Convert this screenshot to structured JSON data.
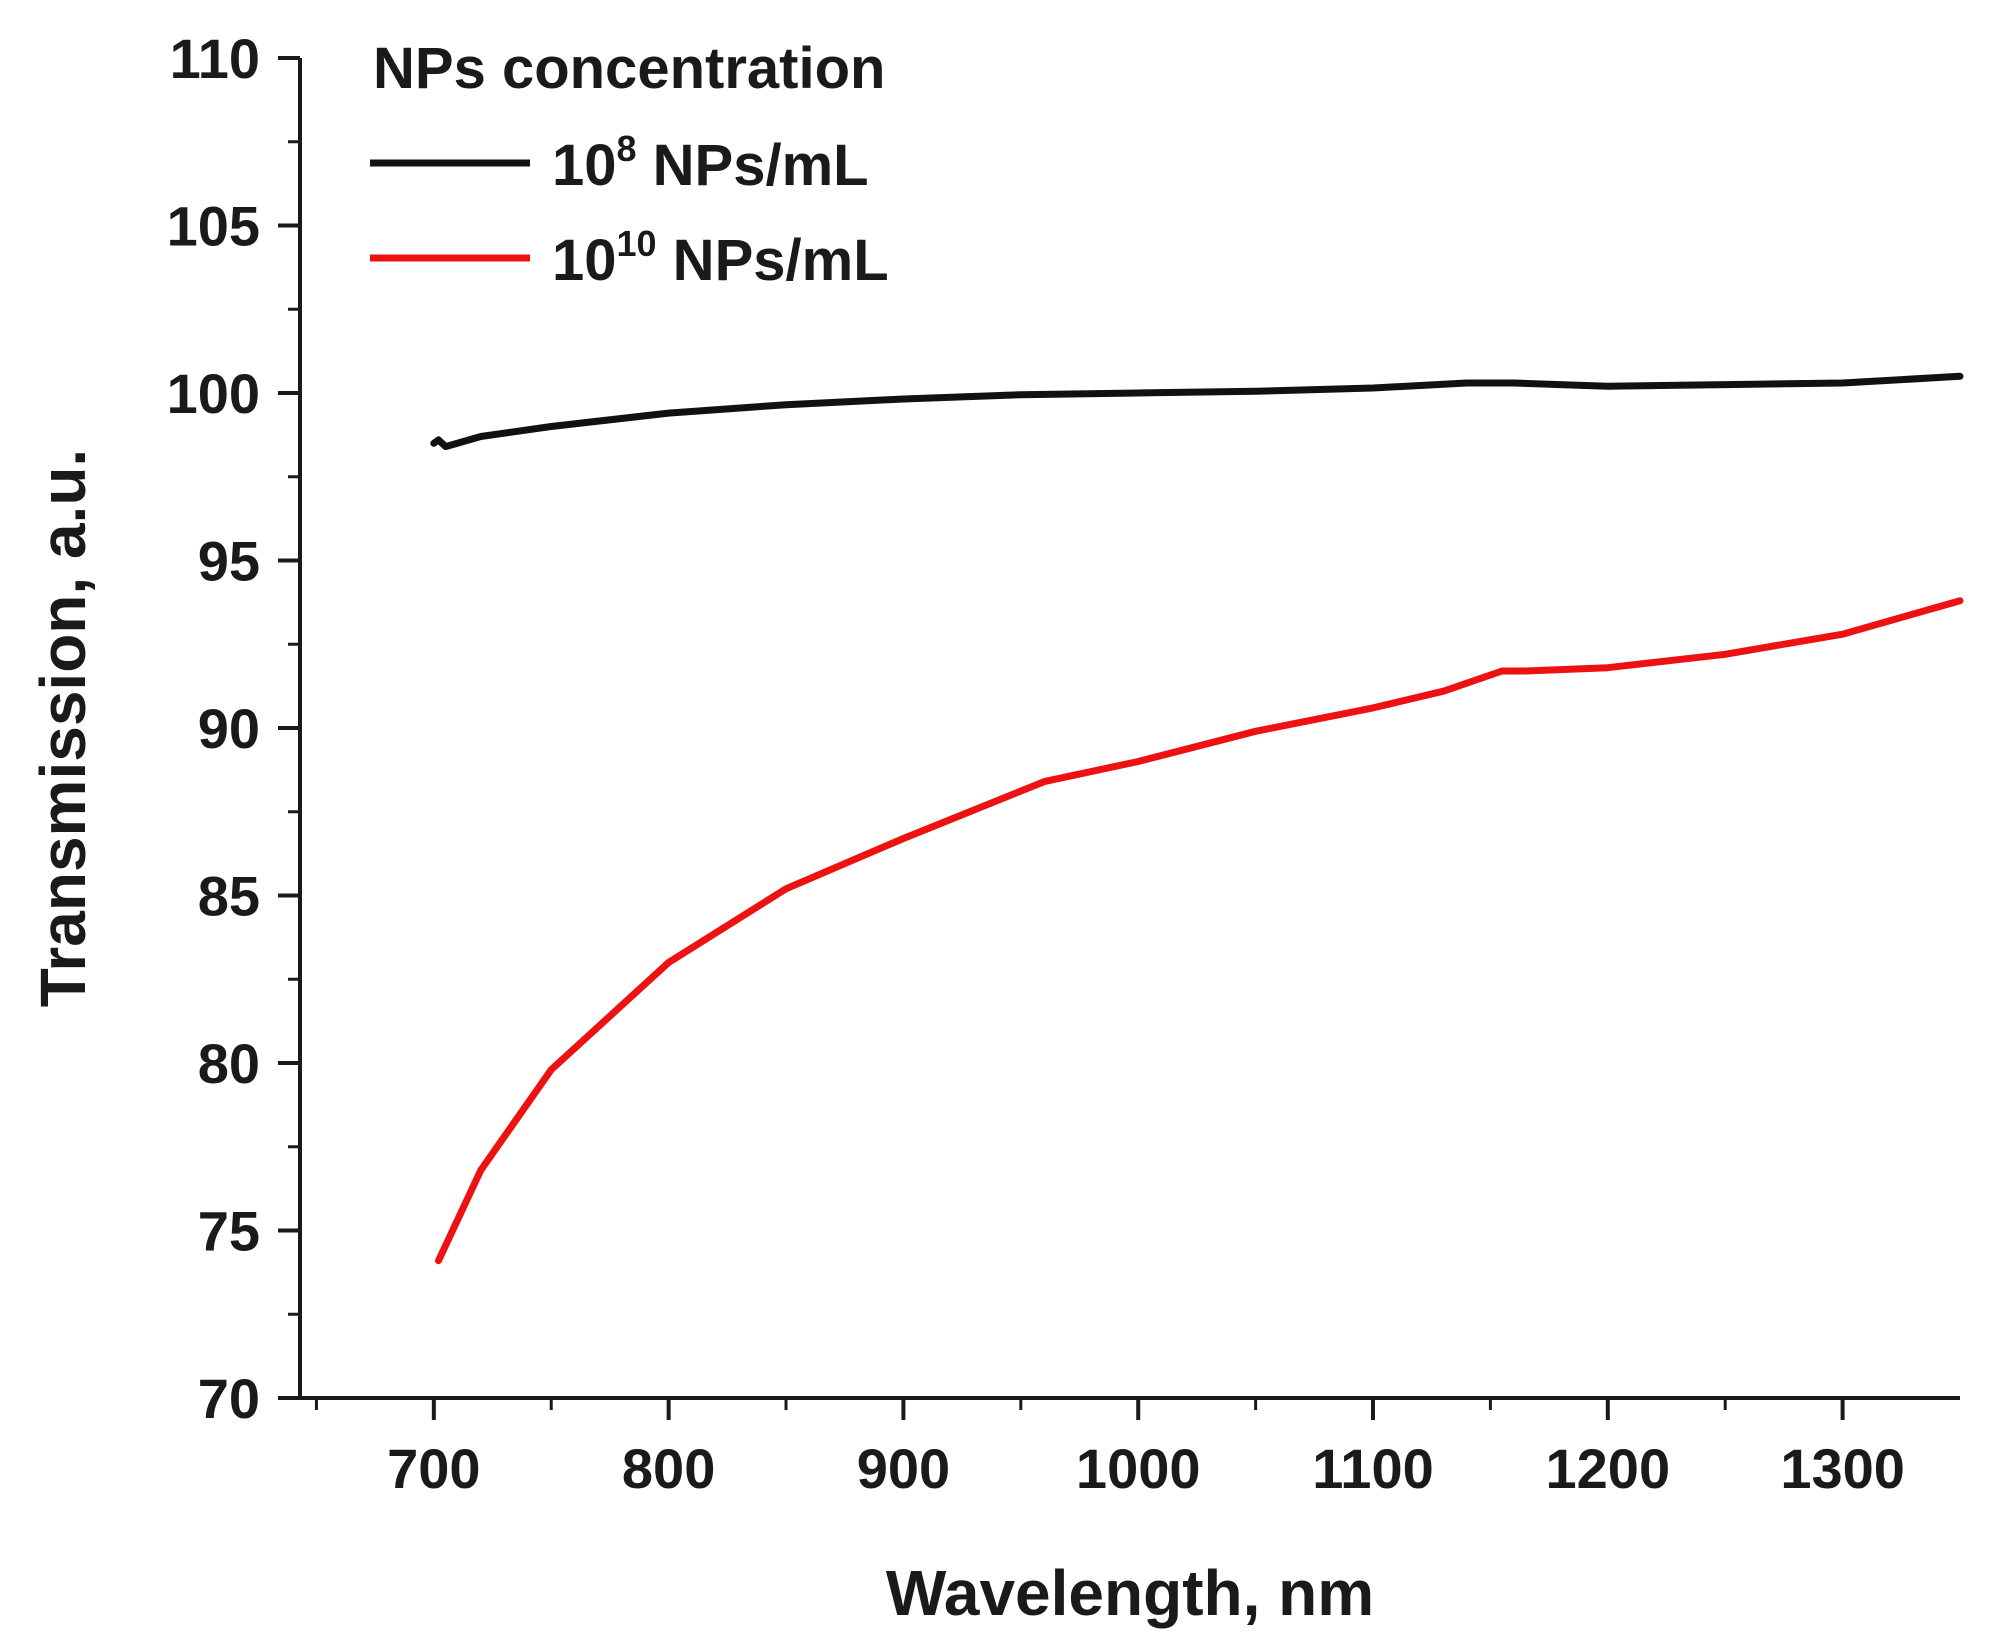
{
  "chart_data": {
    "type": "line",
    "title": "",
    "xlabel": "Wavelength, nm",
    "ylabel": "Transmission, a.u.",
    "xlim": [
      643,
      1350
    ],
    "ylim": [
      70,
      110
    ],
    "xticks": [
      700,
      800,
      900,
      1000,
      1100,
      1200,
      1300
    ],
    "yticks": [
      70,
      75,
      80,
      85,
      90,
      95,
      100,
      105,
      110
    ],
    "grid": false,
    "legend": {
      "title": "NPs concentration",
      "placement": "top-left",
      "entries": [
        {
          "base": "10",
          "exponent": "8",
          "unit": " NPs/mL"
        },
        {
          "base": "10",
          "exponent": "10",
          "unit": " NPs/mL"
        }
      ]
    },
    "series": [
      {
        "name": "10^8 NPs/mL",
        "color": "#111111",
        "x": [
          700,
          702,
          705,
          720,
          750,
          800,
          850,
          900,
          950,
          1000,
          1050,
          1100,
          1140,
          1160,
          1200,
          1250,
          1300,
          1350
        ],
        "y": [
          98.5,
          98.6,
          98.4,
          98.7,
          99.0,
          99.4,
          99.65,
          99.82,
          99.95,
          100.0,
          100.05,
          100.15,
          100.3,
          100.3,
          100.2,
          100.25,
          100.3,
          100.5
        ]
      },
      {
        "name": "10^10 NPs/mL",
        "color": "#ee1111",
        "x": [
          702,
          720,
          750,
          800,
          850,
          900,
          960,
          1000,
          1050,
          1100,
          1130,
          1155,
          1165,
          1200,
          1250,
          1300,
          1350
        ],
        "y": [
          74.1,
          76.8,
          79.8,
          83.0,
          85.2,
          86.7,
          88.4,
          89.0,
          89.9,
          90.6,
          91.1,
          91.7,
          91.7,
          91.8,
          92.2,
          92.8,
          93.8
        ]
      }
    ]
  }
}
